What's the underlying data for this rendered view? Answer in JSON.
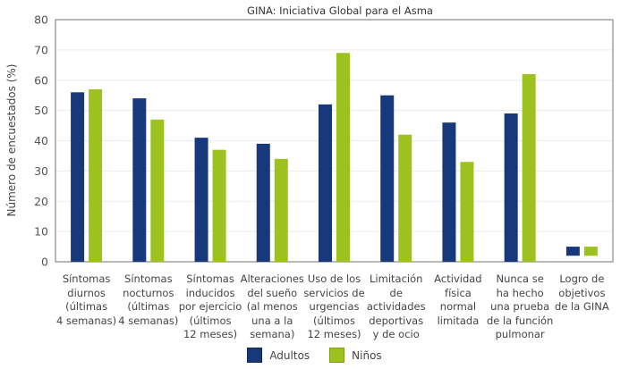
{
  "chart_data": {
    "type": "bar",
    "title": "GINA: Iniciativa Global para el Asma",
    "xlabel": "",
    "ylabel": "Número de encuestados (%)",
    "ylim": [
      0,
      80
    ],
    "yticks": [
      0,
      10,
      20,
      30,
      40,
      50,
      60,
      70,
      80
    ],
    "grid": true,
    "legend_position": "bottom-center",
    "categories": [
      "Síntomas\ndiurnos\n(últimas\n4 semanas)",
      "Síntomas\nnocturnos\n(últimas\n4 semanas)",
      "Síntomas\ninducidos\npor ejercicio\n(últimos\n12 meses)",
      "Alteraciones\ndel sueño\n(al menos\nuna a la\nsemana)",
      "Uso de los\nservicios de\nurgencias\n(últimos\n12 meses)",
      "Limitación\nde\nactividades\ndeportivas\ny de ocio",
      "Actividad\nfísica\nnormal\nlimitada",
      "Nunca se\nha hecho\nuna prueba\nde la función\npulmonar",
      "Logro de\nobjetivos\nde la GINA"
    ],
    "series": [
      {
        "name": "Adultos",
        "color": "#17387A",
        "values": [
          56,
          54,
          41,
          39,
          52,
          55,
          46,
          49,
          5
        ],
        "bases": [
          0,
          0,
          0,
          0,
          0,
          0,
          0,
          0,
          2
        ]
      },
      {
        "name": "Niños",
        "color": "#9DC220",
        "values": [
          57,
          47,
          37,
          34,
          69,
          42,
          33,
          62,
          5
        ],
        "bases": [
          0,
          0,
          0,
          0,
          0,
          0,
          0,
          0,
          2
        ]
      }
    ]
  }
}
